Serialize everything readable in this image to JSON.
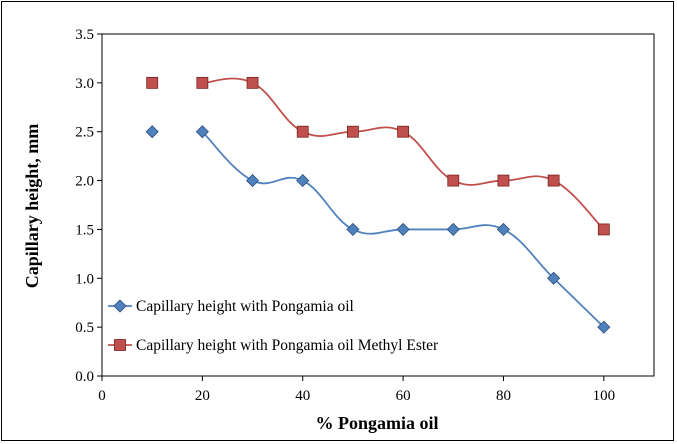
{
  "chart_data": {
    "type": "scatter",
    "title": "",
    "xlabel": "% Pongamia oil",
    "ylabel": "Capillary height, mm",
    "xlim": [
      0,
      110
    ],
    "ylim": [
      0,
      3.5
    ],
    "xticks": [
      0,
      20,
      40,
      60,
      80,
      100
    ],
    "yticks": [
      0.0,
      0.5,
      1.0,
      1.5,
      2.0,
      2.5,
      3.0,
      3.5
    ],
    "grid": false,
    "legend_position": "lower-left",
    "series": [
      {
        "name": "Capillary height with Pongamia oil",
        "marker": "diamond",
        "color": "#4F81BD",
        "line": "smooth",
        "x": [
          10,
          20,
          30,
          40,
          50,
          60,
          70,
          80,
          90,
          100
        ],
        "y": [
          2.5,
          2.5,
          2.0,
          2.0,
          1.5,
          1.5,
          1.5,
          1.5,
          1.0,
          0.5
        ],
        "line_starts_at_index": 1
      },
      {
        "name": "Capillary height with Pongamia oil Methyl Ester",
        "marker": "square",
        "color": "#C0504D",
        "line": "smooth",
        "x": [
          10,
          20,
          30,
          40,
          50,
          60,
          70,
          80,
          90,
          100
        ],
        "y": [
          3.0,
          3.0,
          3.0,
          2.5,
          2.5,
          2.5,
          2.0,
          2.0,
          2.0,
          1.5
        ],
        "line_starts_at_index": 1
      }
    ]
  }
}
